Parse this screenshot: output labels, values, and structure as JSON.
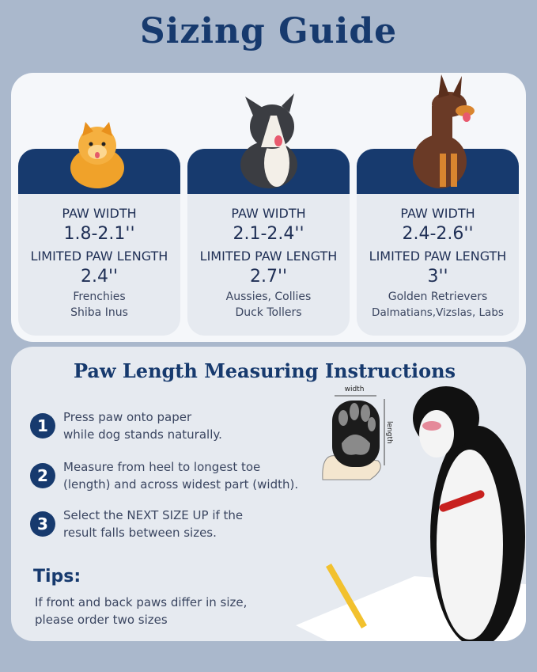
{
  "title": "Sizing Guide",
  "colors": {
    "navy": "#173a6e",
    "background": "#aab8cc",
    "card": "#e6eaf0"
  },
  "cards": [
    {
      "dog": "pomeranian",
      "width_label": "PAW WIDTH",
      "width": "1.8-2.1''",
      "length_label": "LIMITED PAW LENGTH",
      "length": "2.4''",
      "breeds": [
        "Frenchies",
        "Shiba Inus"
      ]
    },
    {
      "dog": "border-collie",
      "width_label": "PAW WIDTH",
      "width": "2.1-2.4''",
      "length_label": "LIMITED PAW LENGTH",
      "length": "2.7''",
      "breeds": [
        "Aussies, Collies",
        "Duck Tollers"
      ]
    },
    {
      "dog": "doberman",
      "width_label": "PAW WIDTH",
      "width": "2.4-2.6''",
      "length_label": "LIMITED PAW LENGTH",
      "length": "3''",
      "breeds": [
        "Golden Retrievers",
        "Dalmatians,Vizslas, Labs"
      ]
    }
  ],
  "instructions": {
    "title": "Paw Length Measuring Instructions",
    "steps": [
      {
        "num": "1",
        "lines": [
          "Press paw onto paper",
          "while dog stands naturally."
        ]
      },
      {
        "num": "2",
        "lines": [
          "Measure from heel to longest toe",
          "(length) and across widest part (width)."
        ]
      },
      {
        "num": "3",
        "lines": [
          "Select the NEXT SIZE UP if the",
          "result falls between sizes."
        ]
      }
    ],
    "diagram": {
      "width_label": "width",
      "length_label": "length"
    },
    "tips_title": "Tips:",
    "tips_lines": [
      "If front and back paws differ in size,",
      "please order two sizes"
    ]
  }
}
